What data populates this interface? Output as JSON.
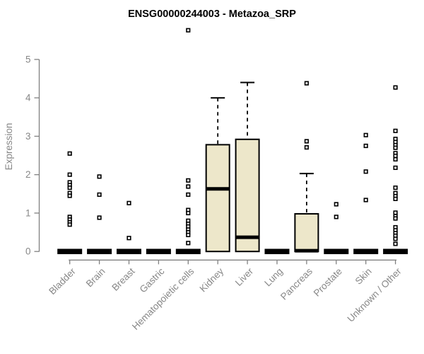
{
  "chart_data": {
    "type": "boxplot",
    "title": "ENSG00000244003 - Metazoa_SRP",
    "ylabel": "Expression",
    "xlabel": "",
    "ylim": [
      0,
      5
    ],
    "yticks": [
      0,
      1,
      2,
      3,
      4,
      5
    ],
    "grid": false,
    "legend": false,
    "categories": [
      "Bladder",
      "Brain",
      "Breast",
      "Gastric",
      "Hematopoietic cells",
      "Kidney",
      "Liver",
      "Lung",
      "Pancreas",
      "Prostate",
      "Skin",
      "Unknown / Other"
    ],
    "series": [
      {
        "category": "Bladder",
        "q1": 0,
        "median": 0,
        "q3": 0,
        "whisker_low": 0,
        "whisker_high": 0,
        "outliers": [
          2.55,
          2.0,
          1.8,
          1.73,
          1.66,
          1.52,
          1.45,
          0.9,
          0.83,
          0.76,
          0.7
        ]
      },
      {
        "category": "Brain",
        "q1": 0,
        "median": 0,
        "q3": 0,
        "whisker_low": 0,
        "whisker_high": 0,
        "outliers": [
          1.95,
          1.48,
          0.88
        ]
      },
      {
        "category": "Breast",
        "q1": 0,
        "median": 0,
        "q3": 0,
        "whisker_low": 0,
        "whisker_high": 0,
        "outliers": [
          1.26,
          0.35
        ]
      },
      {
        "category": "Gastric",
        "q1": 0,
        "median": 0,
        "q3": 0,
        "whisker_low": 0,
        "whisker_high": 0,
        "outliers": []
      },
      {
        "category": "Hematopoietic cells",
        "q1": 0,
        "median": 0,
        "q3": 0,
        "whisker_low": 0,
        "whisker_high": 0,
        "outliers": [
          5.76,
          1.85,
          1.69,
          1.48,
          1.08,
          1.0,
          0.8,
          0.72,
          0.65,
          0.57,
          0.5,
          0.43,
          0.22
        ]
      },
      {
        "category": "Kidney",
        "q1": 0,
        "median": 1.63,
        "q3": 2.78,
        "whisker_low": 0,
        "whisker_high": 4.0,
        "outliers": []
      },
      {
        "category": "Liver",
        "q1": 0,
        "median": 0.37,
        "q3": 2.92,
        "whisker_low": 0,
        "whisker_high": 4.4,
        "outliers": []
      },
      {
        "category": "Lung",
        "q1": 0,
        "median": 0,
        "q3": 0,
        "whisker_low": 0,
        "whisker_high": 0,
        "outliers": []
      },
      {
        "category": "Pancreas",
        "q1": 0,
        "median": 0.02,
        "q3": 0.98,
        "whisker_low": 0,
        "whisker_high": 2.03,
        "outliers": [
          4.38,
          2.87,
          2.71
        ]
      },
      {
        "category": "Prostate",
        "q1": 0,
        "median": 0,
        "q3": 0,
        "whisker_low": 0,
        "whisker_high": 0,
        "outliers": [
          1.23,
          0.9
        ]
      },
      {
        "category": "Skin",
        "q1": 0,
        "median": 0,
        "q3": 0,
        "whisker_low": 0,
        "whisker_high": 0,
        "outliers": [
          3.03,
          2.75,
          2.08,
          1.34
        ]
      },
      {
        "category": "Unknown / Other",
        "q1": 0,
        "median": 0,
        "q3": 0,
        "whisker_low": 0,
        "whisker_high": 0,
        "outliers": [
          4.27,
          3.14,
          2.93,
          2.85,
          2.77,
          2.7,
          2.56,
          2.49,
          2.4,
          2.18,
          1.66,
          1.52,
          1.44,
          1.37,
          1.01,
          0.92,
          0.86,
          0.63,
          0.55,
          0.48,
          0.41,
          0.33,
          0.2
        ]
      }
    ],
    "style": {
      "box_fill": "#EDE7CA",
      "box_border": "#000000",
      "median_color": "#000000",
      "whisker_color": "#000000",
      "outlier_stroke": "#000000",
      "outlier_fill": "#FFFFFF",
      "axis_color": "#808080",
      "tick_label_color": "#878787",
      "title_color": "#000000",
      "background": "#FFFFFF"
    }
  }
}
